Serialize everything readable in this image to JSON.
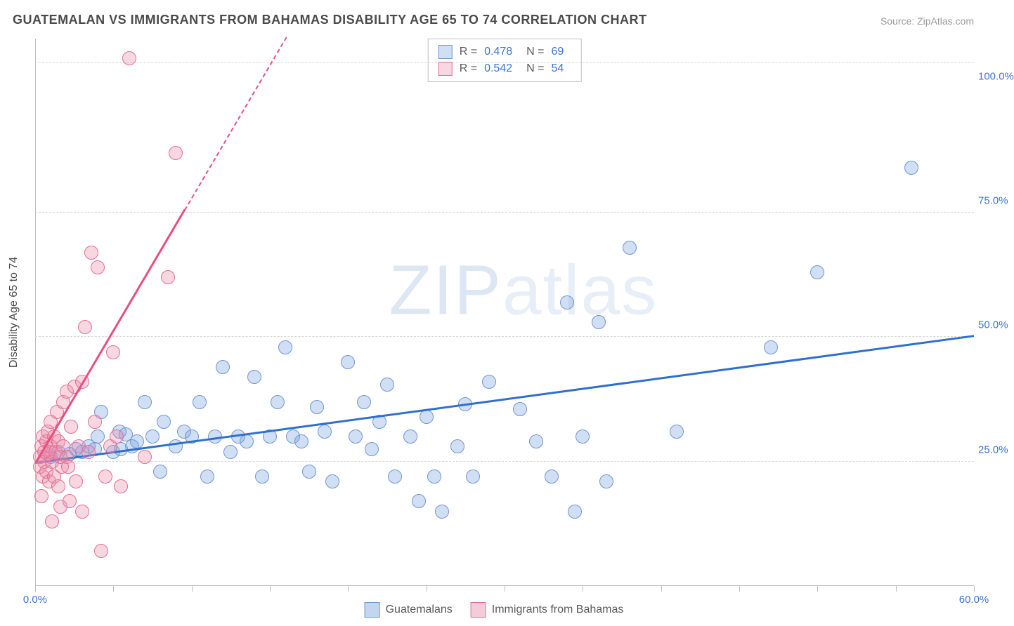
{
  "title": "GUATEMALAN VS IMMIGRANTS FROM BAHAMAS DISABILITY AGE 65 TO 74 CORRELATION CHART",
  "source_label": "Source: ZipAtlas.com",
  "watermark": "ZIPatlas",
  "y_axis_title": "Disability Age 65 to 74",
  "chart": {
    "type": "scatter",
    "background_color": "#ffffff",
    "grid_color": "#d8d8d8",
    "axis_color": "#bdbdbd",
    "text_color": "#4a4a4a",
    "value_color": "#3b74d6",
    "xlim": [
      0,
      60
    ],
    "ylim": [
      0,
      110
    ],
    "x_tick_step": 5,
    "x_labels": [
      {
        "v": 0,
        "t": "0.0%"
      },
      {
        "v": 60,
        "t": "60.0%"
      }
    ],
    "y_gridlines": [
      25,
      50,
      75,
      105
    ],
    "y_labels": [
      {
        "v": 25,
        "t": "25.0%"
      },
      {
        "v": 50,
        "t": "50.0%"
      },
      {
        "v": 75,
        "t": "75.0%"
      },
      {
        "v": 100,
        "t": "100.0%"
      }
    ],
    "marker_radius": 10,
    "marker_border_width": 1,
    "series": [
      {
        "name": "Guatemalans",
        "fill": "rgba(121, 163, 224, 0.35)",
        "stroke": "#6f97d4",
        "line_color": "#2f6fd0",
        "r_value": "0.478",
        "n_value": "69",
        "trend": {
          "x1": 0,
          "y1": 24.5,
          "x2": 60,
          "y2": 50,
          "dash_after_x": 60
        },
        "points": [
          [
            1.0,
            26.0
          ],
          [
            1.5,
            27.0
          ],
          [
            2.2,
            26.5
          ],
          [
            2.6,
            27.5
          ],
          [
            3.0,
            27.0
          ],
          [
            3.4,
            28.0
          ],
          [
            3.8,
            27.5
          ],
          [
            4.0,
            30.0
          ],
          [
            4.2,
            35.0
          ],
          [
            5.0,
            27.0
          ],
          [
            5.4,
            31.0
          ],
          [
            5.8,
            30.5
          ],
          [
            6.2,
            28.0
          ],
          [
            7.0,
            37.0
          ],
          [
            7.5,
            30.0
          ],
          [
            8.0,
            23.0
          ],
          [
            8.2,
            33.0
          ],
          [
            9.0,
            28.0
          ],
          [
            9.5,
            31.0
          ],
          [
            10.0,
            30.0
          ],
          [
            10.5,
            37.0
          ],
          [
            11.0,
            22.0
          ],
          [
            11.5,
            30.0
          ],
          [
            12.0,
            44.0
          ],
          [
            12.5,
            27.0
          ],
          [
            13.0,
            30.0
          ],
          [
            13.5,
            29.0
          ],
          [
            14.0,
            42.0
          ],
          [
            14.5,
            22.0
          ],
          [
            15.0,
            30.0
          ],
          [
            15.5,
            37.0
          ],
          [
            16.0,
            48.0
          ],
          [
            16.5,
            30.0
          ],
          [
            17.0,
            29.0
          ],
          [
            17.5,
            23.0
          ],
          [
            18.0,
            36.0
          ],
          [
            18.5,
            31.0
          ],
          [
            19.0,
            21.0
          ],
          [
            20.0,
            45.0
          ],
          [
            20.5,
            30.0
          ],
          [
            21.0,
            37.0
          ],
          [
            21.5,
            27.5
          ],
          [
            22.0,
            33.0
          ],
          [
            22.5,
            40.5
          ],
          [
            23.0,
            22.0
          ],
          [
            24.0,
            30.0
          ],
          [
            24.5,
            17.0
          ],
          [
            25.0,
            34.0
          ],
          [
            25.5,
            22.0
          ],
          [
            26.0,
            15.0
          ],
          [
            27.0,
            28.0
          ],
          [
            27.5,
            36.5
          ],
          [
            28.0,
            22.0
          ],
          [
            29.0,
            41.0
          ],
          [
            31.0,
            35.5
          ],
          [
            32.0,
            29.0
          ],
          [
            33.0,
            22.0
          ],
          [
            34.0,
            57.0
          ],
          [
            34.5,
            15.0
          ],
          [
            35.0,
            30.0
          ],
          [
            36.0,
            53.0
          ],
          [
            36.5,
            21.0
          ],
          [
            38.0,
            68.0
          ],
          [
            41.0,
            31.0
          ],
          [
            47.0,
            48.0
          ],
          [
            50.0,
            63.0
          ],
          [
            56.0,
            84.0
          ],
          [
            5.5,
            27.5
          ],
          [
            6.5,
            29.0
          ]
        ]
      },
      {
        "name": "Immigrants from Bahamas",
        "fill": "rgba(235, 140, 170, 0.35)",
        "stroke": "#e36f97",
        "line_color": "#e94f7e",
        "r_value": "0.542",
        "n_value": "54",
        "trend": {
          "x1": 0,
          "y1": 24.5,
          "x2": 16,
          "y2": 110,
          "dash_after_x": 9.5
        },
        "points": [
          [
            0.3,
            24.0
          ],
          [
            0.3,
            26.0
          ],
          [
            0.4,
            28.0
          ],
          [
            0.5,
            22.0
          ],
          [
            0.5,
            30.0
          ],
          [
            0.6,
            27.0
          ],
          [
            0.6,
            25.0
          ],
          [
            0.7,
            29.0
          ],
          [
            0.7,
            23.0
          ],
          [
            0.8,
            26.5
          ],
          [
            0.8,
            31.0
          ],
          [
            0.9,
            27.0
          ],
          [
            0.9,
            21.0
          ],
          [
            1.0,
            28.0
          ],
          [
            1.0,
            33.0
          ],
          [
            1.1,
            25.0
          ],
          [
            1.2,
            30.0
          ],
          [
            1.2,
            22.0
          ],
          [
            1.3,
            27.0
          ],
          [
            1.4,
            35.0
          ],
          [
            1.5,
            29.0
          ],
          [
            1.5,
            20.0
          ],
          [
            1.6,
            16.0
          ],
          [
            1.7,
            24.0
          ],
          [
            1.8,
            28.0
          ],
          [
            1.8,
            37.0
          ],
          [
            2.0,
            39.0
          ],
          [
            2.0,
            26.0
          ],
          [
            2.2,
            17.0
          ],
          [
            2.3,
            32.0
          ],
          [
            2.5,
            40.0
          ],
          [
            2.6,
            21.0
          ],
          [
            2.8,
            28.0
          ],
          [
            3.0,
            41.0
          ],
          [
            3.0,
            15.0
          ],
          [
            3.2,
            52.0
          ],
          [
            3.4,
            27.0
          ],
          [
            3.6,
            67.0
          ],
          [
            3.8,
            33.0
          ],
          [
            4.0,
            64.0
          ],
          [
            4.2,
            7.0
          ],
          [
            4.5,
            22.0
          ],
          [
            4.8,
            28.0
          ],
          [
            5.0,
            47.0
          ],
          [
            5.2,
            30.0
          ],
          [
            5.5,
            20.0
          ],
          [
            6.0,
            106.0
          ],
          [
            7.0,
            26.0
          ],
          [
            8.5,
            62.0
          ],
          [
            9.0,
            87.0
          ],
          [
            1.1,
            13.0
          ],
          [
            0.4,
            18.0
          ],
          [
            1.6,
            26.0
          ],
          [
            2.1,
            24.0
          ]
        ]
      }
    ]
  },
  "bottom_legend": [
    {
      "label": "Guatemalans",
      "fill": "rgba(121,163,224,0.45)",
      "stroke": "#6f97d4"
    },
    {
      "label": "Immigrants from Bahamas",
      "fill": "rgba(235,140,170,0.45)",
      "stroke": "#e36f97"
    }
  ]
}
